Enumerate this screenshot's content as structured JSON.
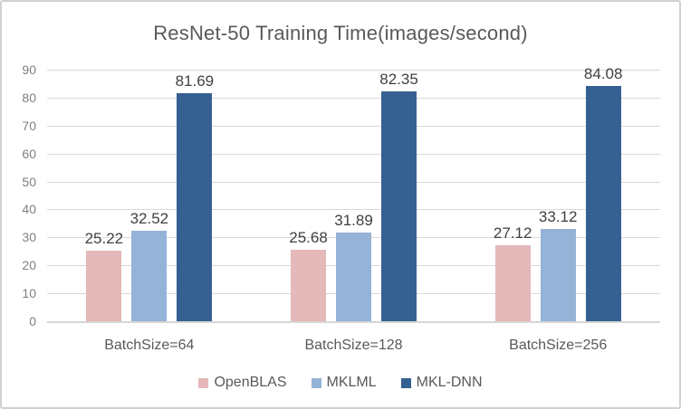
{
  "chart": {
    "title": "ResNet-50 Training Time(images/second)"
  },
  "chart_data": {
    "type": "bar",
    "title": "ResNet-50 Training Time(images/second)",
    "categories": [
      "BatchSize=64",
      "BatchSize=128",
      "BatchSize=256"
    ],
    "series": [
      {
        "name": "OpenBLAS",
        "color": "#e5b8b9",
        "values": [
          25.22,
          25.68,
          27.12
        ]
      },
      {
        "name": "MKLML",
        "color": "#95b3d7",
        "values": [
          32.52,
          31.89,
          33.12
        ]
      },
      {
        "name": "MKL-DNN",
        "color": "#366092",
        "values": [
          81.69,
          82.35,
          84.08
        ]
      }
    ],
    "data_labels": [
      [
        "25.22",
        "25.68",
        "27.12"
      ],
      [
        "32.52",
        "31.89",
        "33.12"
      ],
      [
        "81.69",
        "82.35",
        "84.08"
      ]
    ],
    "xlabel": "",
    "ylabel": "",
    "ylim": [
      0,
      90
    ],
    "yticks": [
      0,
      10,
      20,
      30,
      40,
      50,
      60,
      70,
      80,
      90
    ],
    "grid": true,
    "legend_position": "bottom",
    "legend_entries": [
      "OpenBLAS",
      "MKLML",
      "MKL-DNN"
    ]
  },
  "colors": {
    "gridline": "#d9d9d9",
    "axis_line": "#d6d6d6",
    "title_text": "#595959",
    "tick_text": "#7f7f7f",
    "data_label_text": "#404040",
    "axis_label_text": "#595959",
    "legend_text": "#595959",
    "frame_border": "#d1d1d1",
    "background": "#ffffff"
  }
}
